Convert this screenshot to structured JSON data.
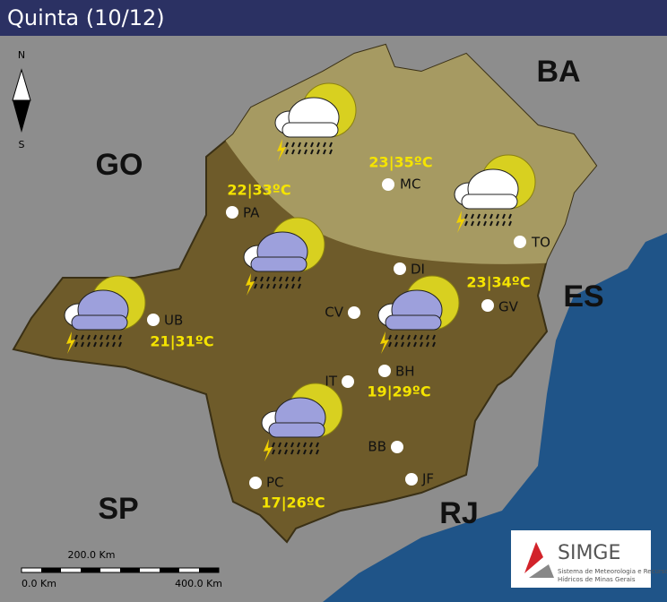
{
  "header": {
    "title": "Quinta (10/12)"
  },
  "compass": {
    "north": "N",
    "south": "S"
  },
  "states": [
    "BA",
    "GO",
    "ES",
    "SP",
    "RJ"
  ],
  "cities": [
    "MC",
    "PA",
    "DI",
    "TO",
    "CV",
    "GV",
    "UB",
    "IT",
    "BH",
    "BB",
    "JF",
    "PC"
  ],
  "forecasts": [
    "23|35ºC",
    "22|33ºC",
    "23|34ºC",
    "21|31ºC",
    "19|29ºC",
    "17|26ºC"
  ],
  "scale_bar": {
    "top_label": "200.0 Km",
    "left_label": "0.0 Km",
    "right_label": "400.0 Km"
  },
  "logo": {
    "name": "SIMGE",
    "subtitle_line1": "Sistema de Meteorologia e Recursos",
    "subtitle_line2": "Hídricos de Minas Gerais"
  }
}
